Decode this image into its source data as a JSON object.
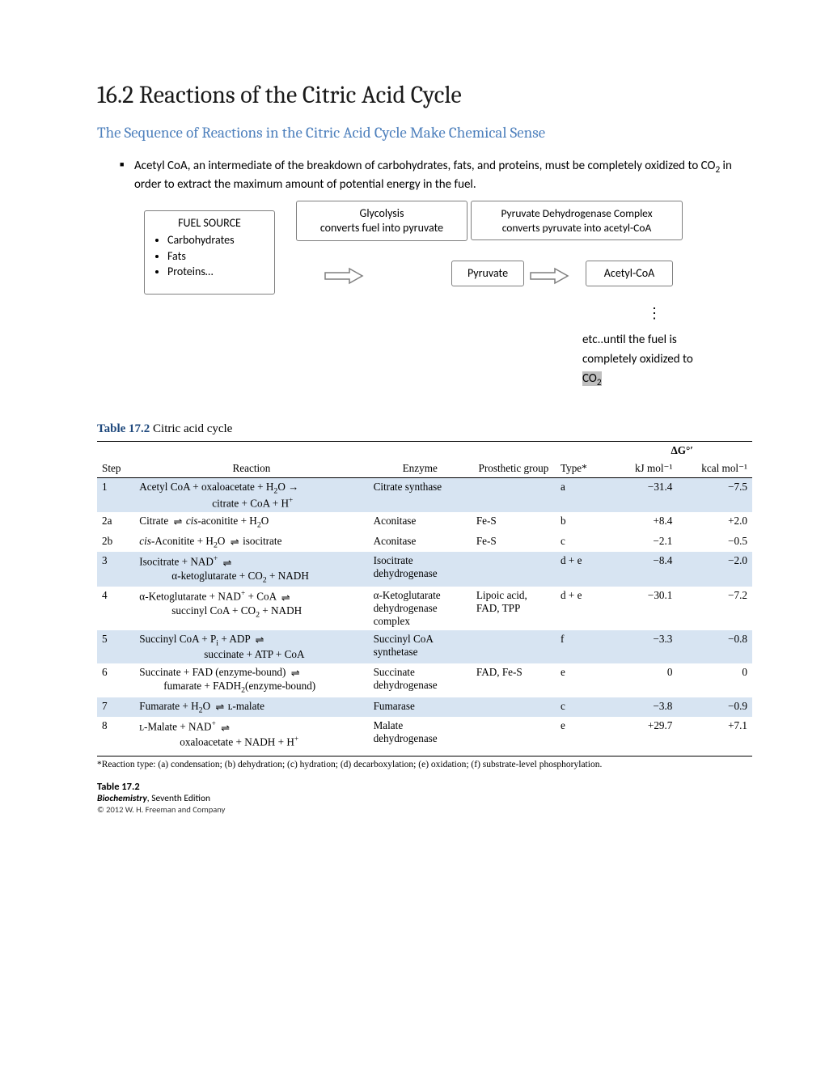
{
  "heading": {
    "title": "16.2  Reactions of the Citric Acid Cycle",
    "subtitle": "The Sequence of Reactions in the Citric Acid Cycle Make Chemical Sense"
  },
  "bullet": {
    "text_a": "Acetyl CoA, an intermediate of the breakdown of carbohydrates, fats, and proteins, must be completely oxidized to CO",
    "text_b": " in order to extract the maximum amount of potential energy in the fuel."
  },
  "diagram": {
    "fuel_header": "FUEL SOURCE",
    "fuel_items": [
      "Carbohydrates",
      "Fats",
      "Proteins…"
    ],
    "glycolysis_title": "Glycolysis",
    "glycolysis_sub": "converts fuel into pyruvate",
    "pdh_title": "Pyruvate Dehydrogenase Complex",
    "pdh_sub": "converts pyruvate into acetyl-CoA",
    "pyruvate": "Pyruvate",
    "acetylcoa": "Acetyl-CoA",
    "tail_a": "etc..until the fuel is completely oxidized to ",
    "tail_b": "CO",
    "tail_c": "2"
  },
  "table": {
    "caption_num": "Table 17.2",
    "caption_text": " Citric acid cycle",
    "delta_g": "ΔG°′",
    "headers": {
      "step": "Step",
      "reaction": "Reaction",
      "enzyme": "Enzyme",
      "prosthetic": "Prosthetic group",
      "type": "Type*",
      "kj": "kJ mol⁻¹",
      "kcal": "kcal mol⁻¹"
    },
    "rows": [
      {
        "shade": 1,
        "step": "1",
        "reaction_html": "Acetyl CoA + oxaloacetate + H<sub class='sub0'>2</sub>O <span class='rarrow'>→</span><br><span style='display:inline-block;width:90px'></span>citrate + CoA + H<sup class='sup'>+</sup>",
        "enzyme": "Citrate synthase",
        "prosthetic": "",
        "type": "a",
        "kj": "−31.4",
        "kcal": "−7.5"
      },
      {
        "shade": 0,
        "step": "2a",
        "reaction_html": "Citrate <span class='eq'>⇌</span> <i>cis</i>-aconitite + H<sub class='sub0'>2</sub>O",
        "enzyme": "Aconitase",
        "prosthetic": "Fe-S",
        "type": "b",
        "kj": "+8.4",
        "kcal": "+2.0"
      },
      {
        "shade": 0,
        "step": "2b",
        "reaction_html": "<i>cis</i>-Aconitite + H<sub class='sub0'>2</sub>O <span class='eq'>⇌</span> isocitrate",
        "enzyme": "Aconitase",
        "prosthetic": "Fe-S",
        "type": "c",
        "kj": "−2.1",
        "kcal": "−0.5"
      },
      {
        "shade": 1,
        "step": "3",
        "reaction_html": "Isocitrate + NAD<sup class='sup'>+</sup> <span class='eq'>⇌</span><br><span style='display:inline-block;width:40px'></span>α-ketoglutarate + CO<sub class='sub0'>2</sub> + NADH",
        "enzyme": "Isocitrate dehydrogenase",
        "prosthetic": "",
        "type": "d + e",
        "kj": "−8.4",
        "kcal": "−2.0"
      },
      {
        "shade": 0,
        "step": "4",
        "reaction_html": "α-Ketoglutarate + NAD<sup class='sup'>+</sup> + CoA <span class='eq'>⇌</span><br><span style='display:inline-block;width:40px'></span>succinyl CoA + CO<sub class='sub0'>2</sub> + NADH",
        "enzyme": "α-Ketoglutarate dehydrogenase complex",
        "prosthetic": "Lipoic acid, FAD, TPP",
        "type": "d + e",
        "kj": "−30.1",
        "kcal": "−7.2"
      },
      {
        "shade": 1,
        "step": "5",
        "reaction_html": "Succinyl CoA + P<sub class='sub0'>i</sub> + ADP <span class='eq'>⇌</span><br><span style='display:inline-block;width:80px'></span>succinate + ATP + CoA",
        "enzyme": "Succinyl CoA synthetase",
        "prosthetic": "",
        "type": "f",
        "kj": "−3.3",
        "kcal": "−0.8"
      },
      {
        "shade": 0,
        "step": "6",
        "reaction_html": "Succinate + FAD (enzyme-bound) <span class='eq'>⇌</span><br><span style='display:inline-block;width:30px'></span>fumarate + FADH<sub class='sub0'>2</sub>(enzyme-bound)",
        "enzyme": "Succinate dehydrogenase",
        "prosthetic": "FAD, Fe-S",
        "type": "e",
        "kj": "0",
        "kcal": "0"
      },
      {
        "shade": 1,
        "step": "7",
        "reaction_html": "Fumarate + H<sub class='sub0'>2</sub>O <span class='eq'>⇌</span> ʟ-malate",
        "enzyme": "Fumarase",
        "prosthetic": "",
        "type": "c",
        "kj": "−3.8",
        "kcal": "−0.9"
      },
      {
        "shade": 0,
        "step": "8",
        "reaction_html": "ʟ-Malate + NAD<sup class='sup'>+</sup> <span class='eq'>⇌</span><br><span style='display:inline-block;width:50px'></span>oxaloacetate + NADH + H<sup class='sup'>+</sup>",
        "enzyme": "Malate dehydrogenase",
        "prosthetic": "",
        "type": "e",
        "kj": "+29.7",
        "kcal": "+7.1"
      }
    ],
    "footnote": "*Reaction type: (a) condensation; (b) dehydration; (c) hydration; (d) decarboxylation; (e) oxidation; (f) substrate-level phosphorylation.",
    "source": {
      "l1": "Table 17.2",
      "l2_a": "Biochemistry",
      "l2_b": ", Seventh Edition",
      "l3": "© 2012 W. H. Freeman and Company"
    }
  },
  "colors": {
    "accent": "#4f81bd",
    "shade": "#d7e4f2",
    "box_border": "#7f7f7f",
    "hl": "#bfbfbf"
  }
}
